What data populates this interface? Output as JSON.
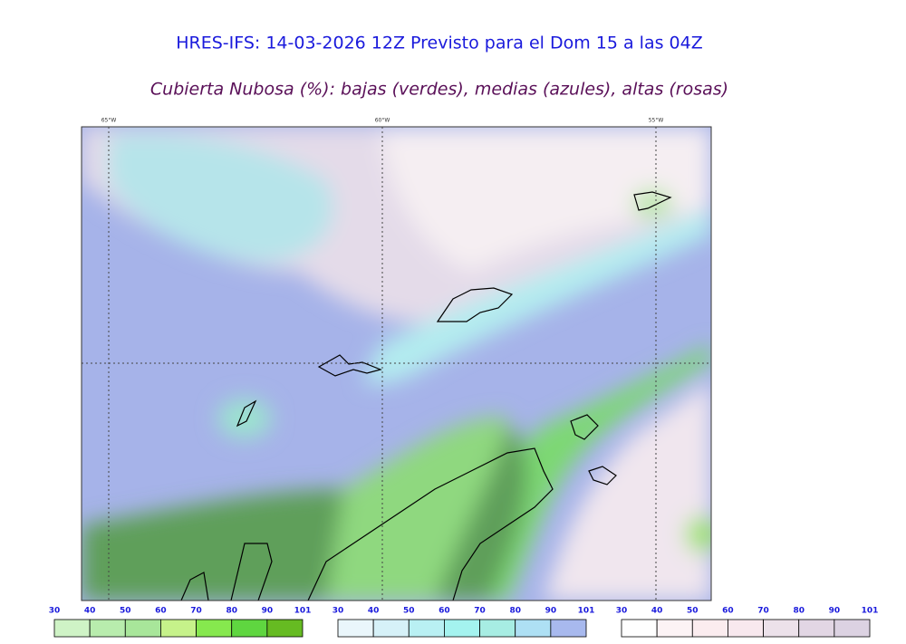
{
  "header": {
    "title": "HRES-IFS: 14-03-2026 12Z Previsto para el Dom 15 a las 04Z",
    "subtitle": "Cubierta Nubosa (%): bajas (verdes), medias (azules), altas (rosas)"
  },
  "map": {
    "longitudes": [
      "65°W",
      "60°W",
      "55°W"
    ]
  },
  "colorbars": [
    {
      "labels": [
        30,
        40,
        50,
        60,
        70,
        80,
        90,
        101
      ],
      "colors": [
        "#cff3c6",
        "#b8ecad",
        "#a8e69a",
        "#c6f28a",
        "#86e84e",
        "#5fd640",
        "#66bb22"
      ]
    },
    {
      "labels": [
        30,
        40,
        50,
        60,
        70,
        80,
        90,
        101
      ],
      "colors": [
        "#eaf6fb",
        "#d6f1f8",
        "#b9f0f3",
        "#a4f3ef",
        "#a7ede3",
        "#aee0f4",
        "#a8b9ee"
      ]
    },
    {
      "labels": [
        30,
        40,
        50,
        60,
        70,
        80,
        90,
        101
      ],
      "colors": [
        "#fefefe",
        "#fcf3f5",
        "#fbecef",
        "#f8e8ee",
        "#ece1ea",
        "#e2d6e4",
        "#dcd2e2"
      ]
    }
  ]
}
